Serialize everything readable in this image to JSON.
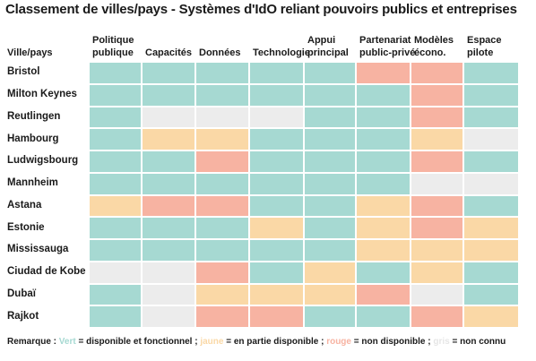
{
  "title": "Classement de villes/pays - Systèmes d'IdO reliant pouvoirs publics et entreprises",
  "chart_data": {
    "type": "heatmap",
    "row_header": "Ville/pays",
    "columns": [
      [
        "Politique",
        "publique"
      ],
      [
        "Capacités"
      ],
      [
        "Données"
      ],
      [
        "Technologie"
      ],
      [
        "Appui",
        "principal"
      ],
      [
        "Partenariat",
        "public-privé"
      ],
      [
        "Modèles",
        "écono."
      ],
      [
        "Espace",
        "pilote"
      ]
    ],
    "rows": [
      {
        "label": "Bristol",
        "values": [
          "green",
          "green",
          "green",
          "green",
          "green",
          "red",
          "red",
          "green"
        ]
      },
      {
        "label": "Milton Keynes",
        "values": [
          "green",
          "green",
          "green",
          "green",
          "green",
          "green",
          "red",
          "green"
        ]
      },
      {
        "label": "Reutlingen",
        "values": [
          "green",
          "grey",
          "grey",
          "grey",
          "green",
          "green",
          "red",
          "green"
        ]
      },
      {
        "label": "Hambourg",
        "values": [
          "green",
          "yellow",
          "yellow",
          "green",
          "green",
          "green",
          "yellow",
          "grey"
        ]
      },
      {
        "label": "Ludwigsbourg",
        "values": [
          "green",
          "green",
          "red",
          "green",
          "green",
          "green",
          "red",
          "green"
        ]
      },
      {
        "label": "Mannheim",
        "values": [
          "green",
          "green",
          "green",
          "green",
          "green",
          "green",
          "grey",
          "grey"
        ]
      },
      {
        "label": "Astana",
        "values": [
          "yellow",
          "red",
          "red",
          "green",
          "green",
          "yellow",
          "red",
          "green"
        ]
      },
      {
        "label": "Estonie",
        "values": [
          "green",
          "green",
          "green",
          "yellow",
          "green",
          "yellow",
          "red",
          "yellow"
        ]
      },
      {
        "label": "Mississauga",
        "values": [
          "green",
          "green",
          "green",
          "green",
          "green",
          "yellow",
          "yellow",
          "yellow"
        ]
      },
      {
        "label": "Ciudad de Kobe",
        "values": [
          "grey",
          "grey",
          "red",
          "green",
          "yellow",
          "green",
          "yellow",
          "green"
        ]
      },
      {
        "label": "Dubaï",
        "values": [
          "green",
          "grey",
          "yellow",
          "yellow",
          "yellow",
          "red",
          "grey",
          "green"
        ]
      },
      {
        "label": "Rajkot",
        "values": [
          "green",
          "grey",
          "red",
          "red",
          "green",
          "green",
          "red",
          "yellow"
        ]
      }
    ],
    "palette": {
      "green": "#a6d9d2",
      "yellow": "#fad8a6",
      "red": "#f7b3a2",
      "grey": "#ececec"
    }
  },
  "legend": {
    "prefix": "Remarque : ",
    "green_word": "Vert",
    "green_text": " = disponible et fonctionnel ; ",
    "yellow_word": "jaune",
    "yellow_text": " = en partie disponible ; ",
    "red_word": "rouge",
    "red_text": " = non disponible ; ",
    "grey_word": "gris",
    "grey_text": " = non connu"
  }
}
